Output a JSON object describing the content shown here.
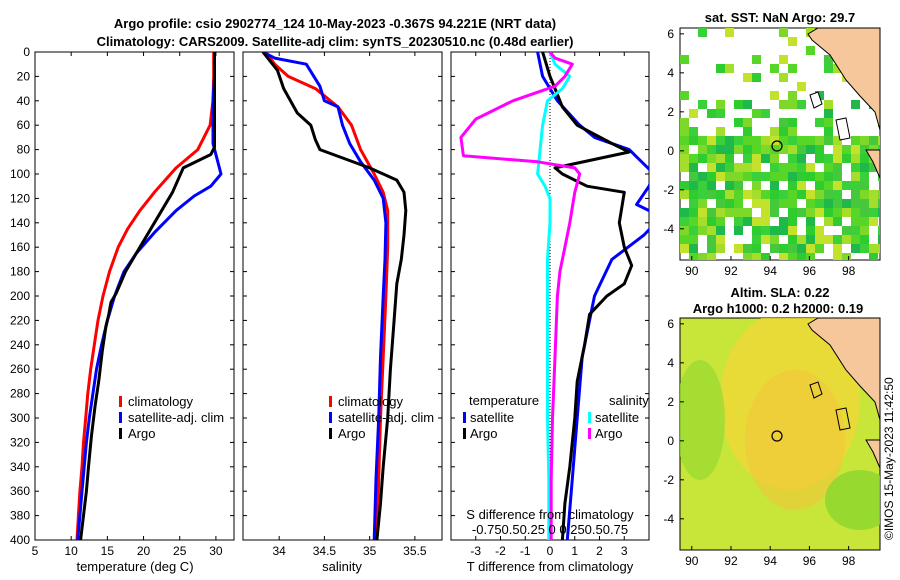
{
  "title": {
    "line1": "Argo profile: csio 2902774_124 10-May-2023 -0.367S 94.221E (NRT data)",
    "line2": "Climatology: CARS2009. Satellite-adj clim: synTS_20230510.nc (0.48d earlier)"
  },
  "depth_axis": {
    "ylim": [
      0,
      400
    ],
    "ticks": [
      0,
      20,
      40,
      60,
      80,
      100,
      120,
      140,
      160,
      180,
      200,
      220,
      240,
      260,
      280,
      300,
      320,
      340,
      360,
      380,
      400
    ]
  },
  "colors": {
    "climatology": "#ff0000",
    "satellite": "#0000ff",
    "argo": "#000000",
    "satellite_t_diff": "#1ae5ee",
    "satellite_s_diff": "#00ffff",
    "argo_s_diff": "#ff00ff"
  },
  "chart_data": [
    {
      "type": "line",
      "name": "temperature-profile",
      "xlabel": "temperature (deg C)",
      "xlim": [
        5,
        32.5
      ],
      "xticks": [
        5,
        10,
        15,
        20,
        25,
        30
      ],
      "legend": [
        "climatology",
        "satellite-adj. clim",
        "Argo"
      ],
      "series": [
        {
          "name": "climatology",
          "color": "#ff0000",
          "points": [
            [
              29.7,
              0
            ],
            [
              29.7,
              20
            ],
            [
              29.6,
              40
            ],
            [
              29.2,
              60
            ],
            [
              27.5,
              80
            ],
            [
              24.5,
              95
            ],
            [
              21.5,
              115
            ],
            [
              19.5,
              130
            ],
            [
              17.8,
              145
            ],
            [
              16.5,
              160
            ],
            [
              15.3,
              180
            ],
            [
              14.4,
              200
            ],
            [
              13.7,
              220
            ],
            [
              13.2,
              240
            ],
            [
              12.7,
              260
            ],
            [
              12.3,
              280
            ],
            [
              12.0,
              300
            ],
            [
              11.7,
              320
            ],
            [
              11.5,
              340
            ],
            [
              11.2,
              360
            ],
            [
              11.0,
              380
            ],
            [
              10.8,
              400
            ]
          ]
        },
        {
          "name": "satellite-adj. clim",
          "color": "#0000ff",
          "points": [
            [
              29.8,
              0
            ],
            [
              29.8,
              20
            ],
            [
              29.6,
              40
            ],
            [
              29.6,
              60
            ],
            [
              29.6,
              75
            ],
            [
              30.7,
              100
            ],
            [
              29.3,
              110
            ],
            [
              27.0,
              118
            ],
            [
              24.5,
              130
            ],
            [
              21.5,
              148
            ],
            [
              19.0,
              165
            ],
            [
              17.3,
              180
            ],
            [
              16.0,
              200
            ],
            [
              15.0,
              220
            ],
            [
              14.2,
              240
            ],
            [
              13.5,
              260
            ],
            [
              13.0,
              280
            ],
            [
              12.5,
              300
            ],
            [
              12.1,
              320
            ],
            [
              11.8,
              340
            ],
            [
              11.5,
              360
            ],
            [
              11.2,
              380
            ],
            [
              10.9,
              400
            ]
          ]
        },
        {
          "name": "Argo",
          "color": "#000000",
          "points": [
            [
              29.8,
              0
            ],
            [
              29.8,
              20
            ],
            [
              29.8,
              40
            ],
            [
              29.8,
              60
            ],
            [
              29.8,
              78
            ],
            [
              29.3,
              84
            ],
            [
              25.5,
              95
            ],
            [
              24.0,
              115
            ],
            [
              21.5,
              140
            ],
            [
              19.5,
              160
            ],
            [
              17.5,
              180
            ],
            [
              16.2,
              198
            ],
            [
              15.5,
              205
            ],
            [
              15.2,
              215
            ],
            [
              14.8,
              225
            ],
            [
              14.3,
              245
            ],
            [
              13.8,
              270
            ],
            [
              13.3,
              290
            ],
            [
              12.8,
              315
            ],
            [
              12.4,
              340
            ],
            [
              12.1,
              360
            ],
            [
              11.7,
              380
            ],
            [
              11.3,
              400
            ]
          ]
        }
      ]
    },
    {
      "type": "line",
      "name": "salinity-profile",
      "xlabel": "salinity",
      "xlim": [
        33.6,
        35.8
      ],
      "xticks": [
        34,
        34.5,
        35,
        35.5
      ],
      "legend": [
        "climatology",
        "satellite-adj. clim",
        "Argo"
      ],
      "series": [
        {
          "name": "climatology",
          "color": "#ff0000",
          "points": [
            [
              33.85,
              0
            ],
            [
              33.95,
              10
            ],
            [
              34.1,
              20
            ],
            [
              34.4,
              30
            ],
            [
              34.65,
              45
            ],
            [
              34.8,
              60
            ],
            [
              34.9,
              80
            ],
            [
              35.05,
              100
            ],
            [
              35.15,
              115
            ],
            [
              35.2,
              130
            ],
            [
              35.2,
              160
            ],
            [
              35.18,
              200
            ],
            [
              35.15,
              250
            ],
            [
              35.12,
              300
            ],
            [
              35.1,
              350
            ],
            [
              35.08,
              400
            ]
          ]
        },
        {
          "name": "satellite-adj. clim",
          "color": "#0000ff",
          "points": [
            [
              33.82,
              0
            ],
            [
              33.95,
              5
            ],
            [
              34.3,
              10
            ],
            [
              34.45,
              28
            ],
            [
              34.5,
              40
            ],
            [
              34.65,
              45
            ],
            [
              34.7,
              60
            ],
            [
              34.78,
              75
            ],
            [
              34.9,
              90
            ],
            [
              35.05,
              105
            ],
            [
              35.15,
              120
            ],
            [
              35.18,
              140
            ],
            [
              35.17,
              170
            ],
            [
              35.15,
              200
            ],
            [
              35.12,
              250
            ],
            [
              35.1,
              300
            ],
            [
              35.07,
              350
            ],
            [
              35.05,
              400
            ]
          ]
        },
        {
          "name": "Argo",
          "color": "#000000",
          "points": [
            [
              33.82,
              0
            ],
            [
              33.98,
              15
            ],
            [
              34.05,
              30
            ],
            [
              34.2,
              50
            ],
            [
              34.35,
              60
            ],
            [
              34.4,
              72
            ],
            [
              34.45,
              80
            ],
            [
              35.0,
              95
            ],
            [
              35.3,
              105
            ],
            [
              35.38,
              115
            ],
            [
              35.4,
              130
            ],
            [
              35.38,
              150
            ],
            [
              35.35,
              170
            ],
            [
              35.3,
              190
            ],
            [
              35.27,
              220
            ],
            [
              35.23,
              260
            ],
            [
              35.2,
              300
            ],
            [
              35.15,
              340
            ],
            [
              35.12,
              370
            ],
            [
              35.08,
              400
            ]
          ]
        }
      ]
    },
    {
      "type": "line",
      "name": "difference-profile",
      "xlabel": "T difference from climatology",
      "xlabel_top": "S difference from climatology",
      "xlim": [
        -4,
        4
      ],
      "xticks": [
        -3,
        -2,
        -1,
        0,
        1,
        2,
        3
      ],
      "top_ticks_text": "-0.750.50.25 0 0.250.50.75",
      "legend_headers": [
        "temperature",
        "salinity"
      ],
      "legend_t": [
        "satellite",
        "Argo"
      ],
      "legend_s": [
        "satellite",
        "Argo"
      ],
      "series": [
        {
          "name": "T satellite",
          "color": "#0000ff",
          "points": [
            [
              -0.5,
              0
            ],
            [
              -0.3,
              20
            ],
            [
              0.3,
              40
            ],
            [
              1.2,
              60
            ],
            [
              1.8,
              70
            ],
            [
              3.2,
              80
            ],
            [
              4.2,
              100
            ],
            [
              4.0,
              110
            ],
            [
              3.5,
              125
            ],
            [
              4.5,
              135
            ],
            [
              3.8,
              150
            ],
            [
              2.5,
              170
            ],
            [
              1.8,
              200
            ],
            [
              1.3,
              250
            ],
            [
              1.1,
              300
            ],
            [
              0.9,
              350
            ],
            [
              0.7,
              400
            ]
          ]
        },
        {
          "name": "T Argo",
          "color": "#000000",
          "points": [
            [
              -0.3,
              0
            ],
            [
              0.0,
              20
            ],
            [
              0.2,
              30
            ],
            [
              0.5,
              45
            ],
            [
              1.1,
              60
            ],
            [
              2.5,
              75
            ],
            [
              3.2,
              82
            ],
            [
              0.2,
              95
            ],
            [
              0.5,
              100
            ],
            [
              1.5,
              110
            ],
            [
              3.0,
              115
            ],
            [
              2.8,
              140
            ],
            [
              3.0,
              160
            ],
            [
              3.3,
              175
            ],
            [
              3.0,
              190
            ],
            [
              2.3,
              200
            ],
            [
              1.6,
              215
            ],
            [
              1.4,
              240
            ],
            [
              1.1,
              270
            ],
            [
              1.0,
              300
            ],
            [
              0.8,
              340
            ],
            [
              0.6,
              370
            ],
            [
              0.5,
              400
            ]
          ]
        },
        {
          "name": "S satellite",
          "color": "#00ffff",
          "points": [
            [
              0.0,
              0
            ],
            [
              0.2,
              10
            ],
            [
              0.8,
              20
            ],
            [
              0.5,
              30
            ],
            [
              -0.1,
              40
            ],
            [
              -0.3,
              60
            ],
            [
              -0.4,
              80
            ],
            [
              -0.5,
              100
            ],
            [
              -0.2,
              110
            ],
            [
              0.0,
              120
            ],
            [
              0.0,
              140
            ],
            [
              -0.1,
              170
            ],
            [
              -0.1,
              200
            ],
            [
              -0.1,
              250
            ],
            [
              -0.1,
              300
            ],
            [
              -0.05,
              350
            ],
            [
              -0.05,
              400
            ]
          ]
        },
        {
          "name": "S Argo",
          "color": "#ff00ff",
          "points": [
            [
              0.0,
              0
            ],
            [
              0.2,
              5
            ],
            [
              0.9,
              10
            ],
            [
              0.6,
              20
            ],
            [
              0.2,
              28
            ],
            [
              -1.5,
              40
            ],
            [
              -3.0,
              55
            ],
            [
              -3.6,
              70
            ],
            [
              -3.5,
              85
            ],
            [
              -0.5,
              90
            ],
            [
              1.0,
              95
            ],
            [
              1.2,
              100
            ],
            [
              1.0,
              115
            ],
            [
              0.8,
              140
            ],
            [
              0.6,
              160
            ],
            [
              0.4,
              180
            ],
            [
              0.3,
              200
            ],
            [
              0.2,
              250
            ],
            [
              0.1,
              300
            ],
            [
              0.05,
              350
            ],
            [
              0.05,
              400
            ]
          ]
        }
      ]
    }
  ],
  "maps": {
    "sst": {
      "title": "sat. SST: NaN Argo: 29.7",
      "xticks": [
        90,
        92,
        94,
        96,
        98
      ],
      "yticks": [
        6,
        4,
        2,
        0,
        -2,
        -4
      ],
      "xlim": [
        89.4,
        99.6
      ],
      "ylim": [
        -5.6,
        6.3
      ],
      "float_position": [
        94.221,
        -0.367
      ]
    },
    "sla": {
      "title_line1": "Altim. SLA: 0.22",
      "title_line2": "Argo h1000: 0.2 h2000: 0.19",
      "xticks": [
        90,
        92,
        94,
        96,
        98
      ],
      "yticks": [
        6,
        4,
        2,
        0,
        -2,
        -4
      ],
      "xlim": [
        89.4,
        99.6
      ],
      "ylim": [
        -5.6,
        6.3
      ],
      "float_position": [
        94.221,
        -0.367
      ]
    }
  },
  "credit": "©IMOS 15-May-2023 11:42:50"
}
